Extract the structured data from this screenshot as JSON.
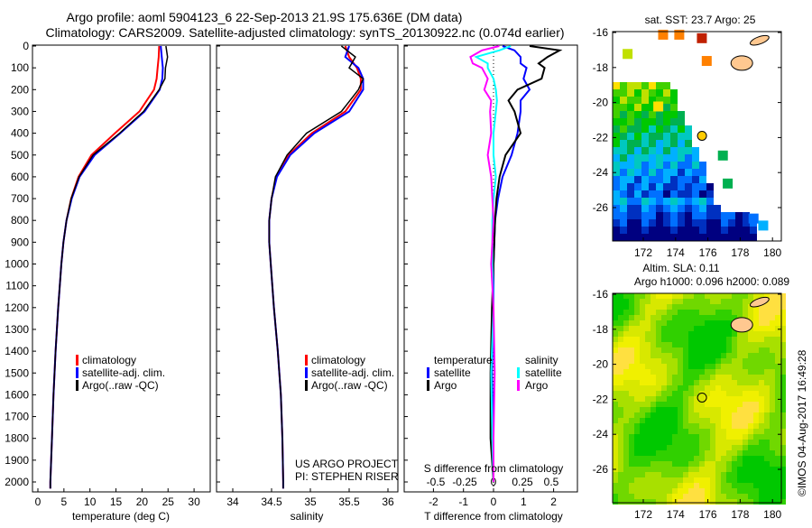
{
  "title": {
    "line1": "Argo profile: aoml 5904123_6 22-Sep-2013 21.9S 175.636E (DM data)",
    "line2": "Climatology: CARS2009. Satellite-adjusted climatology: synTS_20130922.nc (0.074d earlier)"
  },
  "colors": {
    "climatology": "#ff0000",
    "satellite": "#0000ff",
    "argo": "#000000",
    "s_satellite": "#00ffff",
    "s_argo": "#ff00ff"
  },
  "credit": "US ARGO PROJECT",
  "pi": "PI: STEPHEN RISER",
  "stamp": "©IMOS 04-Aug-2017 16:49:28",
  "chart_data": [
    {
      "type": "line",
      "name": "temperature",
      "xlabel": "temperature (deg C)",
      "xlim": [
        -1,
        31
      ],
      "ylim": [
        2050,
        0
      ],
      "xticks": [
        "0",
        "5",
        "10",
        "15",
        "20",
        "25",
        "30"
      ],
      "yticks": [
        "0",
        "100",
        "200",
        "300",
        "400",
        "500",
        "600",
        "700",
        "800",
        "900",
        "1000",
        "1100",
        "1200",
        "1300",
        "1400",
        "1500",
        "1600",
        "1700",
        "1800",
        "1900",
        "2000"
      ],
      "legend": [
        "climatology",
        "satellite-adj. clim.",
        "Argo(..raw -QC)"
      ],
      "depth": [
        0,
        50,
        100,
        150,
        200,
        300,
        400,
        500,
        600,
        700,
        800,
        900,
        1000,
        1200,
        1400,
        1600,
        1800,
        2000,
        2030
      ],
      "series": [
        {
          "name": "climatology",
          "values": [
            23.3,
            23.2,
            23.0,
            22.8,
            22.3,
            19.5,
            14.8,
            10.3,
            7.8,
            6.4,
            5.5,
            4.9,
            4.5,
            3.9,
            3.4,
            3.0,
            2.7,
            2.4,
            2.4
          ]
        },
        {
          "name": "satellite-adj. clim.",
          "values": [
            23.6,
            23.8,
            24.0,
            23.9,
            23.4,
            20.5,
            15.8,
            10.9,
            8.0,
            6.5,
            5.5,
            4.9,
            4.5,
            3.9,
            3.4,
            3.0,
            2.7,
            2.4,
            2.4
          ]
        },
        {
          "name": "Argo(..raw -QC)",
          "values": [
            24.6,
            24.9,
            24.5,
            24.4,
            23.3,
            20.3,
            15.7,
            10.6,
            7.9,
            6.4,
            5.5,
            4.9,
            4.5,
            3.9,
            3.4,
            3.0,
            2.7,
            2.4,
            2.4
          ]
        }
      ]
    },
    {
      "type": "line",
      "name": "salinity",
      "xlabel": "salinity",
      "xlim": [
        33.8,
        36.1
      ],
      "ylim": [
        2050,
        0
      ],
      "xticks": [
        "34",
        "34.5",
        "35",
        "35.5",
        "36"
      ],
      "legend": [
        "climatology",
        "satellite-adj. clim.",
        "Argo(..raw -QC)"
      ],
      "depth": [
        0,
        50,
        100,
        150,
        200,
        300,
        400,
        500,
        600,
        700,
        800,
        900,
        1000,
        1200,
        1400,
        1600,
        1800,
        2000,
        2030
      ],
      "series": [
        {
          "name": "climatology",
          "values": [
            35.45,
            35.5,
            35.6,
            35.65,
            35.65,
            35.45,
            35.02,
            34.72,
            34.56,
            34.5,
            34.47,
            34.47,
            34.49,
            34.53,
            34.58,
            34.62,
            34.64,
            34.65,
            34.65
          ]
        },
        {
          "name": "satellite-adj. clim.",
          "values": [
            35.5,
            35.45,
            35.62,
            35.68,
            35.68,
            35.5,
            35.05,
            34.74,
            34.57,
            34.5,
            34.47,
            34.47,
            34.49,
            34.53,
            34.58,
            34.62,
            34.64,
            34.65,
            34.65
          ]
        },
        {
          "name": "Argo(..raw -QC)",
          "values": [
            35.4,
            35.58,
            35.5,
            35.68,
            35.62,
            35.4,
            34.95,
            34.7,
            34.55,
            34.5,
            34.47,
            34.47,
            34.49,
            34.53,
            34.58,
            34.62,
            34.64,
            34.65,
            34.65
          ]
        }
      ]
    },
    {
      "type": "line",
      "name": "difference",
      "xlabel": "T difference from climatology",
      "x2label": "S difference from climatology",
      "xlim": [
        -3,
        3
      ],
      "x2lim": [
        -0.78,
        0.78
      ],
      "ylim": [
        2050,
        0
      ],
      "xticks": [
        "-2",
        "-1",
        "0",
        "1",
        "2"
      ],
      "x2ticks": [
        "-0.5",
        "-0.25",
        "0",
        "0.25",
        "0.5"
      ],
      "legend_t_title": "temperature",
      "legend_s_title": "salinity",
      "legend": [
        "satellite",
        "Argo",
        "satellite",
        "Argo"
      ],
      "depth": [
        0,
        20,
        50,
        80,
        100,
        150,
        200,
        250,
        300,
        400,
        500,
        600,
        700,
        800,
        1000,
        1200,
        1500,
        1800,
        2000
      ],
      "series": [
        {
          "name": "T satellite",
          "axis": "T",
          "values": [
            0.3,
            0.7,
            0.9,
            0.9,
            1.1,
            1.0,
            1.2,
            0.9,
            0.9,
            0.8,
            0.6,
            0.3,
            0.15,
            0.05,
            0.0,
            0.0,
            -0.05,
            0.0,
            0.0
          ]
        },
        {
          "name": "T Argo",
          "axis": "T",
          "values": [
            1.2,
            2.2,
            1.8,
            1.5,
            1.7,
            1.6,
            0.8,
            0.5,
            0.7,
            0.9,
            0.4,
            0.2,
            0.1,
            0.05,
            0.0,
            -0.05,
            -0.1,
            -0.1,
            0.0
          ]
        },
        {
          "name": "S satellite",
          "axis": "S",
          "values": [
            0.15,
            0.05,
            -0.15,
            -0.05,
            -0.05,
            0.0,
            0.02,
            0.03,
            0.02,
            0.0,
            0.0,
            0.02,
            0.0,
            -0.01,
            -0.01,
            0.0,
            -0.02,
            -0.01,
            0.0
          ]
        },
        {
          "name": "S Argo",
          "axis": "S",
          "values": [
            0.05,
            -0.1,
            -0.2,
            -0.18,
            -0.1,
            -0.05,
            -0.08,
            -0.02,
            -0.03,
            -0.02,
            -0.05,
            -0.02,
            -0.01,
            0.0,
            -0.02,
            0.0,
            0.01,
            0.0,
            0.0
          ]
        }
      ]
    },
    {
      "type": "heatmap",
      "name": "sst-map",
      "title": "sat. SST: 23.7 Argo: 25",
      "lonlim": [
        170.2,
        181.2
      ],
      "latlim": [
        -27.9,
        -16
      ],
      "xticks": [
        "172",
        "174",
        "176",
        "178",
        "180"
      ],
      "yticks": [
        "-16",
        "-18",
        "-20",
        "-22",
        "-24",
        "-26"
      ],
      "argo_position": {
        "lon": 175.636,
        "lat": -21.9
      }
    },
    {
      "type": "heatmap",
      "name": "sla-map",
      "title1": "Altim. SLA: 0.11",
      "title2": "Argo h1000: 0.096 h2000: 0.089",
      "lonlim": [
        170.2,
        181.2
      ],
      "latlim": [
        -27.9,
        -16
      ],
      "xticks": [
        "172",
        "174",
        "176",
        "178",
        "180"
      ],
      "yticks": [
        "-16",
        "-18",
        "-20",
        "-22",
        "-24",
        "-26"
      ],
      "argo_position": {
        "lon": 175.636,
        "lat": -21.9
      }
    }
  ]
}
